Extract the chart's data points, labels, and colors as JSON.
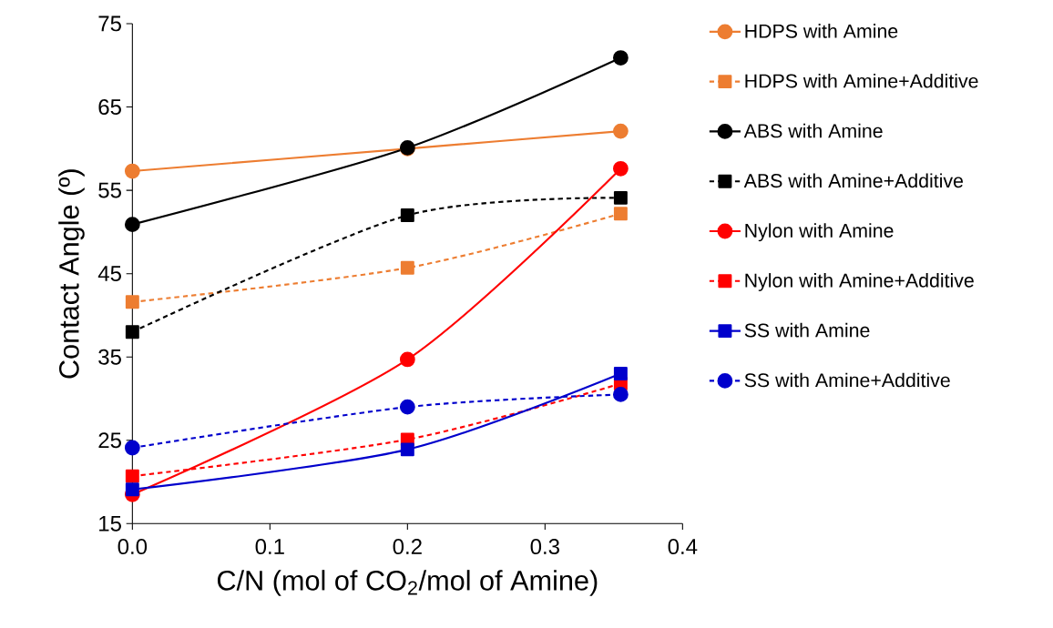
{
  "chart_data": {
    "type": "line",
    "xlabel": "C/N (mol of CO$_{2}$/mol of Amine)",
    "ylabel": "Contact Angle (º)",
    "x": [
      0,
      0.2,
      0.355
    ],
    "xlim": [
      0,
      0.4
    ],
    "ylim": [
      15,
      75
    ],
    "xticks": [
      {
        "value": 0,
        "label": "0.0"
      },
      0.1,
      0.2,
      0.3,
      0.4
    ],
    "yticks": [
      15,
      25,
      35,
      45,
      55,
      65,
      75
    ],
    "legend": "right",
    "grid": false,
    "series": [
      {
        "name": "HDPS with Amine",
        "color": "#ed7d31",
        "marker": "circle",
        "line_style": "solid",
        "values": [
          57.3,
          60.0,
          62.1
        ]
      },
      {
        "name": "HDPS with Amine+Additive",
        "color": "#ed7d31",
        "marker": "square",
        "line_style": "dashed",
        "values": [
          41.6,
          45.7,
          52.2
        ]
      },
      {
        "name": "ABS with Amine",
        "color": "#000000",
        "marker": "circle",
        "line_style": "solid",
        "values": [
          50.9,
          60.1,
          70.9
        ]
      },
      {
        "name": "ABS with Amine+Additive",
        "color": "#000000",
        "marker": "square",
        "line_style": "dashed",
        "values": [
          38.0,
          52.0,
          54.1
        ]
      },
      {
        "name": "Nylon with Amine",
        "color": "#ff0000",
        "marker": "circle",
        "line_style": "solid",
        "values": [
          18.5,
          34.7,
          57.6
        ]
      },
      {
        "name": "Nylon with Amine+Additive",
        "color": "#ff0000",
        "marker": "square",
        "line_style": "dashed",
        "values": [
          20.7,
          25.1,
          31.8
        ]
      },
      {
        "name": "SS with Amine",
        "color": "#0000cc",
        "marker": "square",
        "line_style": "solid",
        "values": [
          19.1,
          23.9,
          33.0
        ]
      },
      {
        "name": "SS with Amine+Additive",
        "color": "#0000cc",
        "marker": "circle",
        "line_style": "dashed",
        "values": [
          24.1,
          29.0,
          30.5
        ]
      }
    ]
  }
}
